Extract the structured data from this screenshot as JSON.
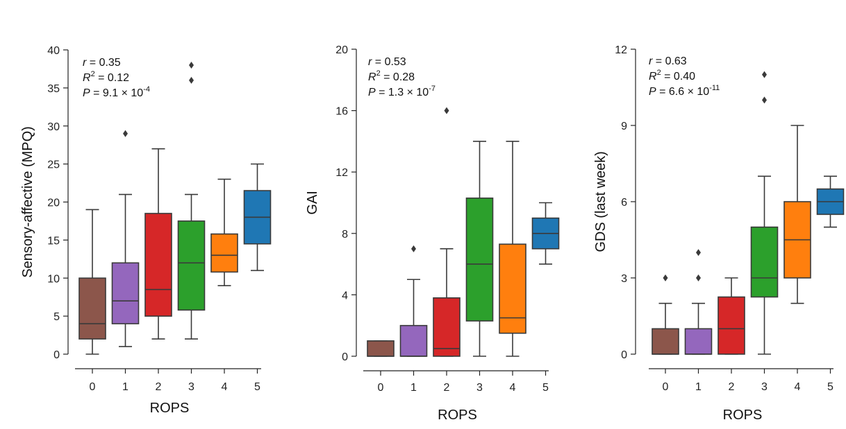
{
  "chart_data": [
    {
      "type": "box",
      "xlabel": "ROPS",
      "ylabel": "Sensory-affective (MPQ)",
      "ylim": [
        0,
        40
      ],
      "yticks": [
        0,
        5,
        10,
        15,
        20,
        25,
        30,
        35,
        40
      ],
      "categories": [
        "0",
        "1",
        "2",
        "3",
        "4",
        "5"
      ],
      "stats": {
        "r_label": "r",
        "r_value": "= 0.35",
        "r2_label": "R",
        "r2_exp": "2",
        "r2_value": "= 0.12",
        "p_label": "P",
        "p_value": "= 9.1 × 10",
        "p_exp": "-4"
      },
      "boxes": [
        {
          "category": "0",
          "whisker_low": 0,
          "q1": 2,
          "median": 4,
          "q3": 10,
          "whisker_high": 19,
          "fliers": [],
          "color": "#8c564b"
        },
        {
          "category": "1",
          "whisker_low": 1,
          "q1": 4,
          "median": 7,
          "q3": 12,
          "whisker_high": 21,
          "fliers": [
            29
          ],
          "color": "#9467bd"
        },
        {
          "category": "2",
          "whisker_low": 2,
          "q1": 5,
          "median": 8.5,
          "q3": 18.5,
          "whisker_high": 27,
          "fliers": [],
          "color": "#d62728"
        },
        {
          "category": "3",
          "whisker_low": 2,
          "q1": 5.8,
          "median": 12,
          "q3": 17.5,
          "whisker_high": 21,
          "fliers": [
            36,
            38
          ],
          "color": "#2ca02c"
        },
        {
          "category": "4",
          "whisker_low": 9,
          "q1": 10.8,
          "median": 13,
          "q3": 15.8,
          "whisker_high": 23,
          "fliers": [],
          "color": "#ff7f0e"
        },
        {
          "category": "5",
          "whisker_low": 11,
          "q1": 14.5,
          "median": 18,
          "q3": 21.5,
          "whisker_high": 25,
          "fliers": [],
          "color": "#1f77b4"
        }
      ]
    },
    {
      "type": "box",
      "xlabel": "ROPS",
      "ylabel": "GAI",
      "ylim": [
        0,
        20
      ],
      "yticks": [
        0,
        4,
        8,
        12,
        16,
        20
      ],
      "categories": [
        "0",
        "1",
        "2",
        "3",
        "4",
        "5"
      ],
      "stats": {
        "r_label": "r",
        "r_value": "= 0.53",
        "r2_label": "R",
        "r2_exp": "2",
        "r2_value": "= 0.28",
        "p_label": "P",
        "p_value": "= 1.3 × 10",
        "p_exp": "-7"
      },
      "boxes": [
        {
          "category": "0",
          "whisker_low": 0,
          "q1": 0,
          "median": 0,
          "q3": 1,
          "whisker_high": 1,
          "fliers": [],
          "color": "#8c564b"
        },
        {
          "category": "1",
          "whisker_low": 0,
          "q1": 0,
          "median": 0,
          "q3": 2,
          "whisker_high": 5,
          "fliers": [
            7
          ],
          "color": "#9467bd"
        },
        {
          "category": "2",
          "whisker_low": 0,
          "q1": 0,
          "median": 0.5,
          "q3": 3.8,
          "whisker_high": 7,
          "fliers": [
            16
          ],
          "color": "#d62728"
        },
        {
          "category": "3",
          "whisker_low": 0,
          "q1": 2.3,
          "median": 6,
          "q3": 10.3,
          "whisker_high": 14,
          "fliers": [],
          "color": "#2ca02c"
        },
        {
          "category": "4",
          "whisker_low": 0,
          "q1": 1.5,
          "median": 2.5,
          "q3": 7.3,
          "whisker_high": 14,
          "fliers": [],
          "color": "#ff7f0e"
        },
        {
          "category": "5",
          "whisker_low": 6,
          "q1": 7,
          "median": 8,
          "q3": 9,
          "whisker_high": 10,
          "fliers": [],
          "color": "#1f77b4"
        }
      ]
    },
    {
      "type": "box",
      "xlabel": "ROPS",
      "ylabel": "GDS (last week)",
      "ylim": [
        0,
        12
      ],
      "yticks": [
        0,
        3,
        6,
        9,
        12
      ],
      "categories": [
        "0",
        "1",
        "2",
        "3",
        "4",
        "5"
      ],
      "stats": {
        "r_label": "r",
        "r_value": "= 0.63",
        "r2_label": "R",
        "r2_exp": "2",
        "r2_value": "= 0.40",
        "p_label": "P",
        "p_value": "= 6.6 × 10",
        "p_exp": "-11"
      },
      "boxes": [
        {
          "category": "0",
          "whisker_low": 0,
          "q1": 0,
          "median": 0,
          "q3": 1,
          "whisker_high": 2,
          "fliers": [
            3
          ],
          "color": "#8c564b"
        },
        {
          "category": "1",
          "whisker_low": 0,
          "q1": 0,
          "median": 0,
          "q3": 1,
          "whisker_high": 2,
          "fliers": [
            3,
            4
          ],
          "color": "#9467bd"
        },
        {
          "category": "2",
          "whisker_low": 0,
          "q1": 0,
          "median": 1,
          "q3": 2.25,
          "whisker_high": 3,
          "fliers": [],
          "color": "#d62728"
        },
        {
          "category": "3",
          "whisker_low": 0,
          "q1": 2.25,
          "median": 3,
          "q3": 5,
          "whisker_high": 7,
          "fliers": [
            10,
            11
          ],
          "color": "#2ca02c"
        },
        {
          "category": "4",
          "whisker_low": 2,
          "q1": 3,
          "median": 4.5,
          "q3": 6,
          "whisker_high": 9,
          "fliers": [],
          "color": "#ff7f0e"
        },
        {
          "category": "5",
          "whisker_low": 5,
          "q1": 5.5,
          "median": 6,
          "q3": 6.5,
          "whisker_high": 7,
          "fliers": [],
          "color": "#1f77b4"
        }
      ]
    }
  ]
}
